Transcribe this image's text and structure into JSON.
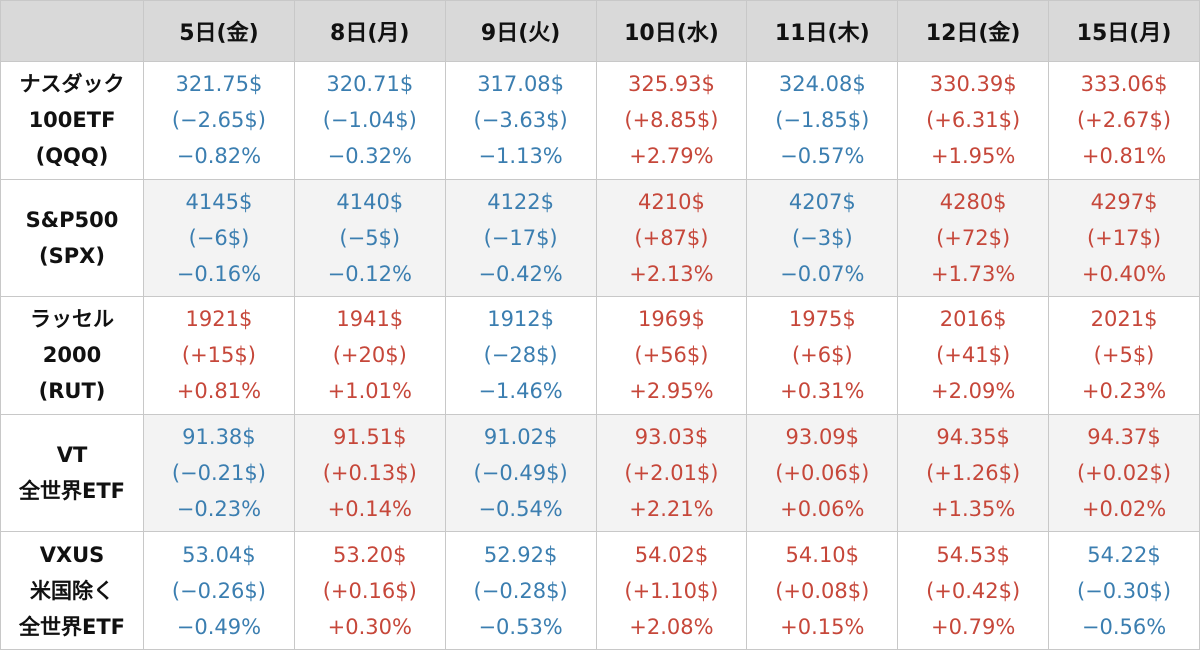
{
  "columns": [
    "5日(金)",
    "8日(月)",
    "9日(火)",
    "10日(水)",
    "11日(木)",
    "12日(金)",
    "15日(月)"
  ],
  "colors": {
    "up": "#c6473a",
    "down": "#3b7eb0"
  },
  "rows": [
    {
      "label": [
        "ナスダック",
        "100ETF",
        "(QQQ)"
      ],
      "cells": [
        {
          "price": "321.75$",
          "change": "(−2.65$)",
          "pct": "−0.82%",
          "dir": "down"
        },
        {
          "price": "320.71$",
          "change": "(−1.04$)",
          "pct": "−0.32%",
          "dir": "down"
        },
        {
          "price": "317.08$",
          "change": "(−3.63$)",
          "pct": "−1.13%",
          "dir": "down"
        },
        {
          "price": "325.93$",
          "change": "(+8.85$)",
          "pct": "+2.79%",
          "dir": "up"
        },
        {
          "price": "324.08$",
          "change": "(−1.85$)",
          "pct": "−0.57%",
          "dir": "down"
        },
        {
          "price": "330.39$",
          "change": "(+6.31$)",
          "pct": "+1.95%",
          "dir": "up"
        },
        {
          "price": "333.06$",
          "change": "(+2.67$)",
          "pct": "+0.81%",
          "dir": "up"
        }
      ]
    },
    {
      "label": [
        "S&P500",
        "(SPX)"
      ],
      "cells": [
        {
          "price": "4145$",
          "change": "(−6$)",
          "pct": "−0.16%",
          "dir": "down"
        },
        {
          "price": "4140$",
          "change": "(−5$)",
          "pct": "−0.12%",
          "dir": "down"
        },
        {
          "price": "4122$",
          "change": "(−17$)",
          "pct": "−0.42%",
          "dir": "down"
        },
        {
          "price": "4210$",
          "change": "(+87$)",
          "pct": "+2.13%",
          "dir": "up"
        },
        {
          "price": "4207$",
          "change": "(−3$)",
          "pct": "−0.07%",
          "dir": "down"
        },
        {
          "price": "4280$",
          "change": "(+72$)",
          "pct": "+1.73%",
          "dir": "up"
        },
        {
          "price": "4297$",
          "change": "(+17$)",
          "pct": "+0.40%",
          "dir": "up"
        }
      ]
    },
    {
      "label": [
        "ラッセル",
        "2000",
        "(RUT)"
      ],
      "cells": [
        {
          "price": "1921$",
          "change": "(+15$)",
          "pct": "+0.81%",
          "dir": "up"
        },
        {
          "price": "1941$",
          "change": "(+20$)",
          "pct": "+1.01%",
          "dir": "up"
        },
        {
          "price": "1912$",
          "change": "(−28$)",
          "pct": "−1.46%",
          "dir": "down"
        },
        {
          "price": "1969$",
          "change": "(+56$)",
          "pct": "+2.95%",
          "dir": "up"
        },
        {
          "price": "1975$",
          "change": "(+6$)",
          "pct": "+0.31%",
          "dir": "up"
        },
        {
          "price": "2016$",
          "change": "(+41$)",
          "pct": "+2.09%",
          "dir": "up"
        },
        {
          "price": "2021$",
          "change": "(+5$)",
          "pct": "+0.23%",
          "dir": "up"
        }
      ]
    },
    {
      "label": [
        "VT",
        "全世界ETF"
      ],
      "cells": [
        {
          "price": "91.38$",
          "change": "(−0.21$)",
          "pct": "−0.23%",
          "dir": "down"
        },
        {
          "price": "91.51$",
          "change": "(+0.13$)",
          "pct": "+0.14%",
          "dir": "up"
        },
        {
          "price": "91.02$",
          "change": "(−0.49$)",
          "pct": "−0.54%",
          "dir": "down"
        },
        {
          "price": "93.03$",
          "change": "(+2.01$)",
          "pct": "+2.21%",
          "dir": "up"
        },
        {
          "price": "93.09$",
          "change": "(+0.06$)",
          "pct": "+0.06%",
          "dir": "up"
        },
        {
          "price": "94.35$",
          "change": "(+1.26$)",
          "pct": "+1.35%",
          "dir": "up"
        },
        {
          "price": "94.37$",
          "change": "(+0.02$)",
          "pct": "+0.02%",
          "dir": "up"
        }
      ]
    },
    {
      "label": [
        "VXUS",
        "米国除く",
        "全世界ETF"
      ],
      "cells": [
        {
          "price": "53.04$",
          "change": "(−0.26$)",
          "pct": "−0.49%",
          "dir": "down"
        },
        {
          "price": "53.20$",
          "change": "(+0.16$)",
          "pct": "+0.30%",
          "dir": "up"
        },
        {
          "price": "52.92$",
          "change": "(−0.28$)",
          "pct": "−0.53%",
          "dir": "down"
        },
        {
          "price": "54.02$",
          "change": "(+1.10$)",
          "pct": "+2.08%",
          "dir": "up"
        },
        {
          "price": "54.10$",
          "change": "(+0.08$)",
          "pct": "+0.15%",
          "dir": "up"
        },
        {
          "price": "54.53$",
          "change": "(+0.42$)",
          "pct": "+0.79%",
          "dir": "up"
        },
        {
          "price": "54.22$",
          "change": "(−0.30$)",
          "pct": "−0.56%",
          "dir": "down"
        }
      ]
    }
  ]
}
